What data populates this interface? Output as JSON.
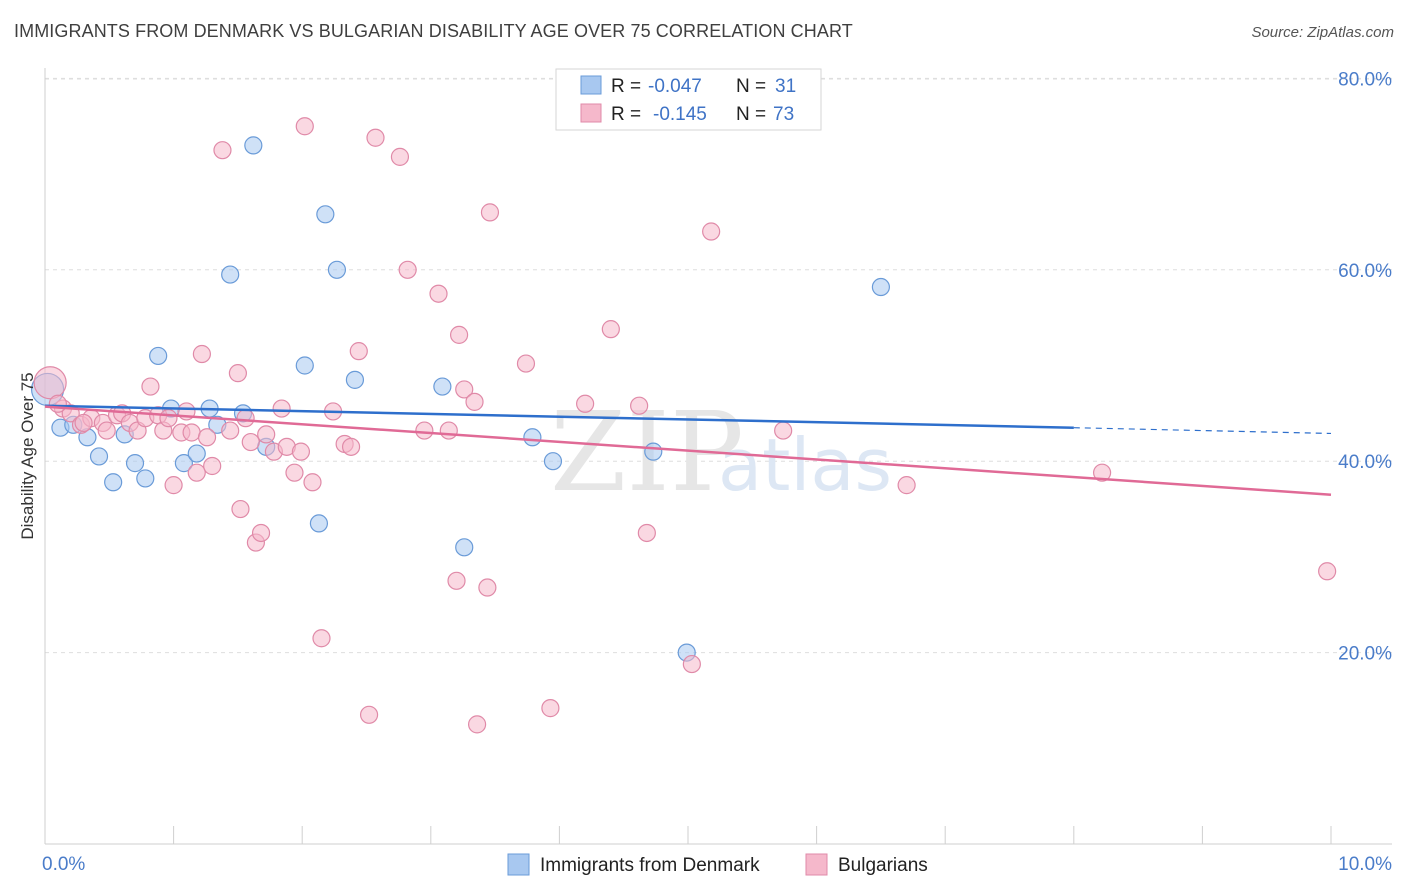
{
  "header": {
    "title": "IMMIGRANTS FROM DENMARK VS BULGARIAN DISABILITY AGE OVER 75 CORRELATION CHART",
    "source": "Source: ZipAtlas.com"
  },
  "watermark": {
    "zip": "ZIP",
    "atlas": "atlas"
  },
  "legend_box": {
    "rows": [
      {
        "r_label": "R =",
        "r_value": "-0.047",
        "n_label": "N =",
        "n_value": "31",
        "color": "#a8c8f0"
      },
      {
        "r_label": "R =",
        "r_value": "-0.145",
        "n_label": "N =",
        "n_value": "73",
        "color": "#f5b8cb"
      }
    ]
  },
  "chart_data": {
    "type": "scatter",
    "title": "IMMIGRANTS FROM DENMARK VS BULGARIAN DISABILITY AGE OVER 75 CORRELATION CHART",
    "xlabel": "",
    "ylabel": "Disability Age Over 75",
    "xlim": [
      0,
      10
    ],
    "ylim": [
      0,
      85
    ],
    "x_tick_labels": [
      "0.0%",
      "10.0%"
    ],
    "y_ticks": [
      20,
      40,
      60,
      80
    ],
    "y_tick_labels": [
      "20.0%",
      "40.0%",
      "60.0%",
      "80.0%"
    ],
    "grid": true,
    "legend_position": "bottom",
    "series": [
      {
        "name": "Immigrants from Denmark",
        "color": "#a8c8f0",
        "stroke": "#6a9bd8",
        "line_color": "#2e6fcc",
        "trend": {
          "x0": 0.0,
          "y0": 45.8,
          "x1": 8.0,
          "y1": 43.5,
          "dash_to_x": 10.0,
          "dash_to_y": 42.9
        },
        "points": [
          [
            0.02,
            47.5
          ],
          [
            0.12,
            43.5
          ],
          [
            0.22,
            43.8
          ],
          [
            0.33,
            42.5
          ],
          [
            0.42,
            40.5
          ],
          [
            0.53,
            37.8
          ],
          [
            0.62,
            42.8
          ],
          [
            0.7,
            39.8
          ],
          [
            0.78,
            38.2
          ],
          [
            0.88,
            51.0
          ],
          [
            0.98,
            45.5
          ],
          [
            1.08,
            39.8
          ],
          [
            1.18,
            40.8
          ],
          [
            1.28,
            45.5
          ],
          [
            1.34,
            43.8
          ],
          [
            1.44,
            59.5
          ],
          [
            1.54,
            45.0
          ],
          [
            1.62,
            73.0
          ],
          [
            1.72,
            41.5
          ],
          [
            2.02,
            50.0
          ],
          [
            2.13,
            33.5
          ],
          [
            2.18,
            65.8
          ],
          [
            2.27,
            60.0
          ],
          [
            2.41,
            48.5
          ],
          [
            3.09,
            47.8
          ],
          [
            3.26,
            31.0
          ],
          [
            3.79,
            42.5
          ],
          [
            3.95,
            40.0
          ],
          [
            4.73,
            41.0
          ],
          [
            4.99,
            20.0
          ],
          [
            6.5,
            58.2
          ]
        ]
      },
      {
        "name": "Bulgarians",
        "color": "#f5b8cb",
        "stroke": "#e08aa8",
        "line_color": "#e06a96",
        "trend": {
          "x0": 0.0,
          "y0": 45.7,
          "x1": 10.0,
          "y1": 36.5
        },
        "points": [
          [
            0.04,
            48.2
          ],
          [
            0.14,
            45.5
          ],
          [
            0.2,
            45.0
          ],
          [
            0.28,
            43.8
          ],
          [
            0.36,
            44.5
          ],
          [
            0.45,
            44.0
          ],
          [
            0.48,
            43.2
          ],
          [
            0.56,
            44.8
          ],
          [
            0.6,
            45.0
          ],
          [
            0.66,
            44.0
          ],
          [
            0.72,
            43.2
          ],
          [
            0.78,
            44.5
          ],
          [
            0.82,
            47.8
          ],
          [
            0.88,
            44.8
          ],
          [
            0.92,
            43.2
          ],
          [
            0.96,
            44.5
          ],
          [
            1.0,
            37.5
          ],
          [
            1.06,
            43.0
          ],
          [
            1.1,
            45.2
          ],
          [
            1.14,
            43.0
          ],
          [
            1.18,
            38.8
          ],
          [
            1.22,
            51.2
          ],
          [
            1.26,
            42.5
          ],
          [
            1.3,
            39.5
          ],
          [
            1.38,
            72.5
          ],
          [
            1.44,
            43.2
          ],
          [
            1.5,
            49.2
          ],
          [
            1.52,
            35.0
          ],
          [
            1.56,
            44.5
          ],
          [
            1.6,
            42.0
          ],
          [
            1.64,
            31.5
          ],
          [
            1.68,
            32.5
          ],
          [
            1.72,
            42.8
          ],
          [
            1.78,
            41.0
          ],
          [
            1.84,
            45.5
          ],
          [
            1.88,
            41.5
          ],
          [
            1.94,
            38.8
          ],
          [
            1.99,
            41.0
          ],
          [
            2.02,
            75.0
          ],
          [
            2.08,
            37.8
          ],
          [
            2.15,
            21.5
          ],
          [
            2.24,
            45.2
          ],
          [
            2.33,
            41.8
          ],
          [
            2.38,
            41.5
          ],
          [
            2.44,
            51.5
          ],
          [
            2.52,
            13.5
          ],
          [
            2.57,
            73.8
          ],
          [
            2.76,
            71.8
          ],
          [
            2.82,
            60.0
          ],
          [
            2.95,
            43.2
          ],
          [
            3.06,
            57.5
          ],
          [
            3.14,
            43.2
          ],
          [
            3.2,
            27.5
          ],
          [
            3.22,
            53.2
          ],
          [
            3.26,
            47.5
          ],
          [
            3.34,
            46.2
          ],
          [
            3.36,
            12.5
          ],
          [
            3.44,
            26.8
          ],
          [
            3.46,
            66.0
          ],
          [
            3.74,
            50.2
          ],
          [
            3.93,
            14.2
          ],
          [
            4.2,
            46.0
          ],
          [
            4.4,
            53.8
          ],
          [
            4.62,
            45.8
          ],
          [
            4.68,
            32.5
          ],
          [
            5.03,
            18.8
          ],
          [
            5.18,
            64.0
          ],
          [
            5.74,
            43.2
          ],
          [
            6.7,
            37.5
          ],
          [
            8.22,
            38.8
          ],
          [
            9.97,
            28.5
          ],
          [
            0.1,
            46.0
          ],
          [
            0.3,
            44.0
          ]
        ]
      }
    ]
  }
}
